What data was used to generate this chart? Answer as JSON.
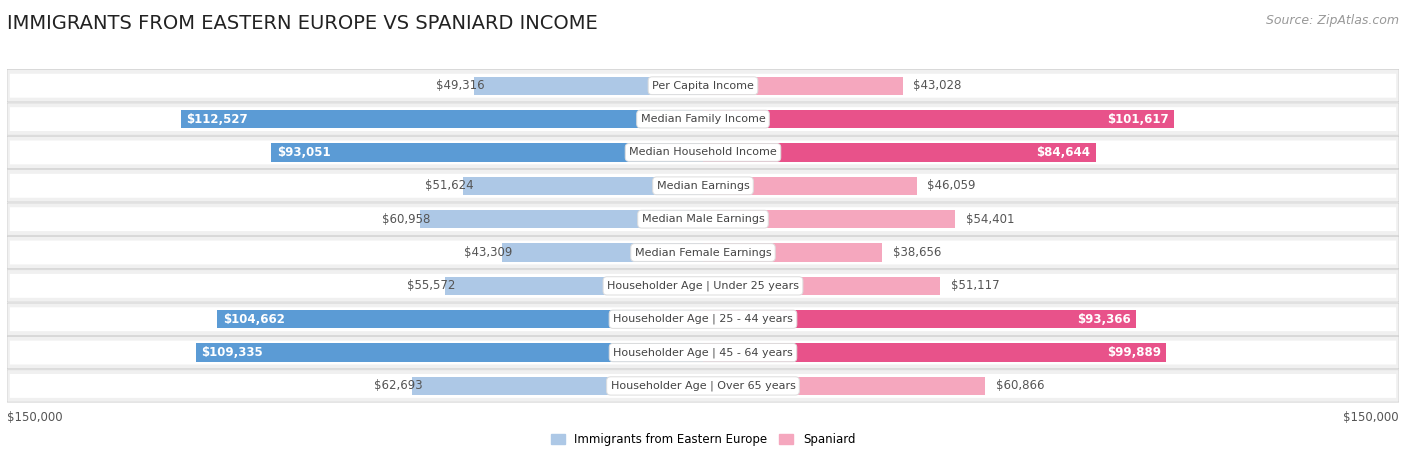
{
  "title": "IMMIGRANTS FROM EASTERN EUROPE VS SPANIARD INCOME",
  "source": "Source: ZipAtlas.com",
  "categories": [
    "Per Capita Income",
    "Median Family Income",
    "Median Household Income",
    "Median Earnings",
    "Median Male Earnings",
    "Median Female Earnings",
    "Householder Age | Under 25 years",
    "Householder Age | 25 - 44 years",
    "Householder Age | 45 - 64 years",
    "Householder Age | Over 65 years"
  ],
  "eastern_europe": [
    49316,
    112527,
    93051,
    51624,
    60958,
    43309,
    55572,
    104662,
    109335,
    62693
  ],
  "spaniard": [
    43028,
    101617,
    84644,
    46059,
    54401,
    38656,
    51117,
    93366,
    99889,
    60866
  ],
  "eastern_europe_labels": [
    "$49,316",
    "$112,527",
    "$93,051",
    "$51,624",
    "$60,958",
    "$43,309",
    "$55,572",
    "$104,662",
    "$109,335",
    "$62,693"
  ],
  "spaniard_labels": [
    "$43,028",
    "$101,617",
    "$84,644",
    "$46,059",
    "$54,401",
    "$38,656",
    "$51,117",
    "$93,366",
    "$99,889",
    "$60,866"
  ],
  "eastern_europe_inside": [
    false,
    true,
    true,
    false,
    false,
    false,
    false,
    true,
    true,
    false
  ],
  "spaniard_inside": [
    false,
    true,
    true,
    false,
    false,
    false,
    false,
    true,
    true,
    false
  ],
  "max_value": 150000,
  "eastern_europe_color_light": "#adc8e6",
  "eastern_europe_color_dark": "#5b9bd5",
  "spaniard_color_light": "#f5a7be",
  "spaniard_color_dark": "#e8528a",
  "row_bg": "#ebebeb",
  "row_inner_bg": "#f8f8f8",
  "legend_eastern": "Immigrants from Eastern Europe",
  "legend_spaniard": "Spaniard",
  "xlabel_left": "$150,000",
  "xlabel_right": "$150,000",
  "title_fontsize": 14,
  "label_fontsize": 8.5,
  "category_fontsize": 8.0,
  "source_fontsize": 9,
  "label_color_outside": "#555555",
  "label_color_inside": "#ffffff"
}
